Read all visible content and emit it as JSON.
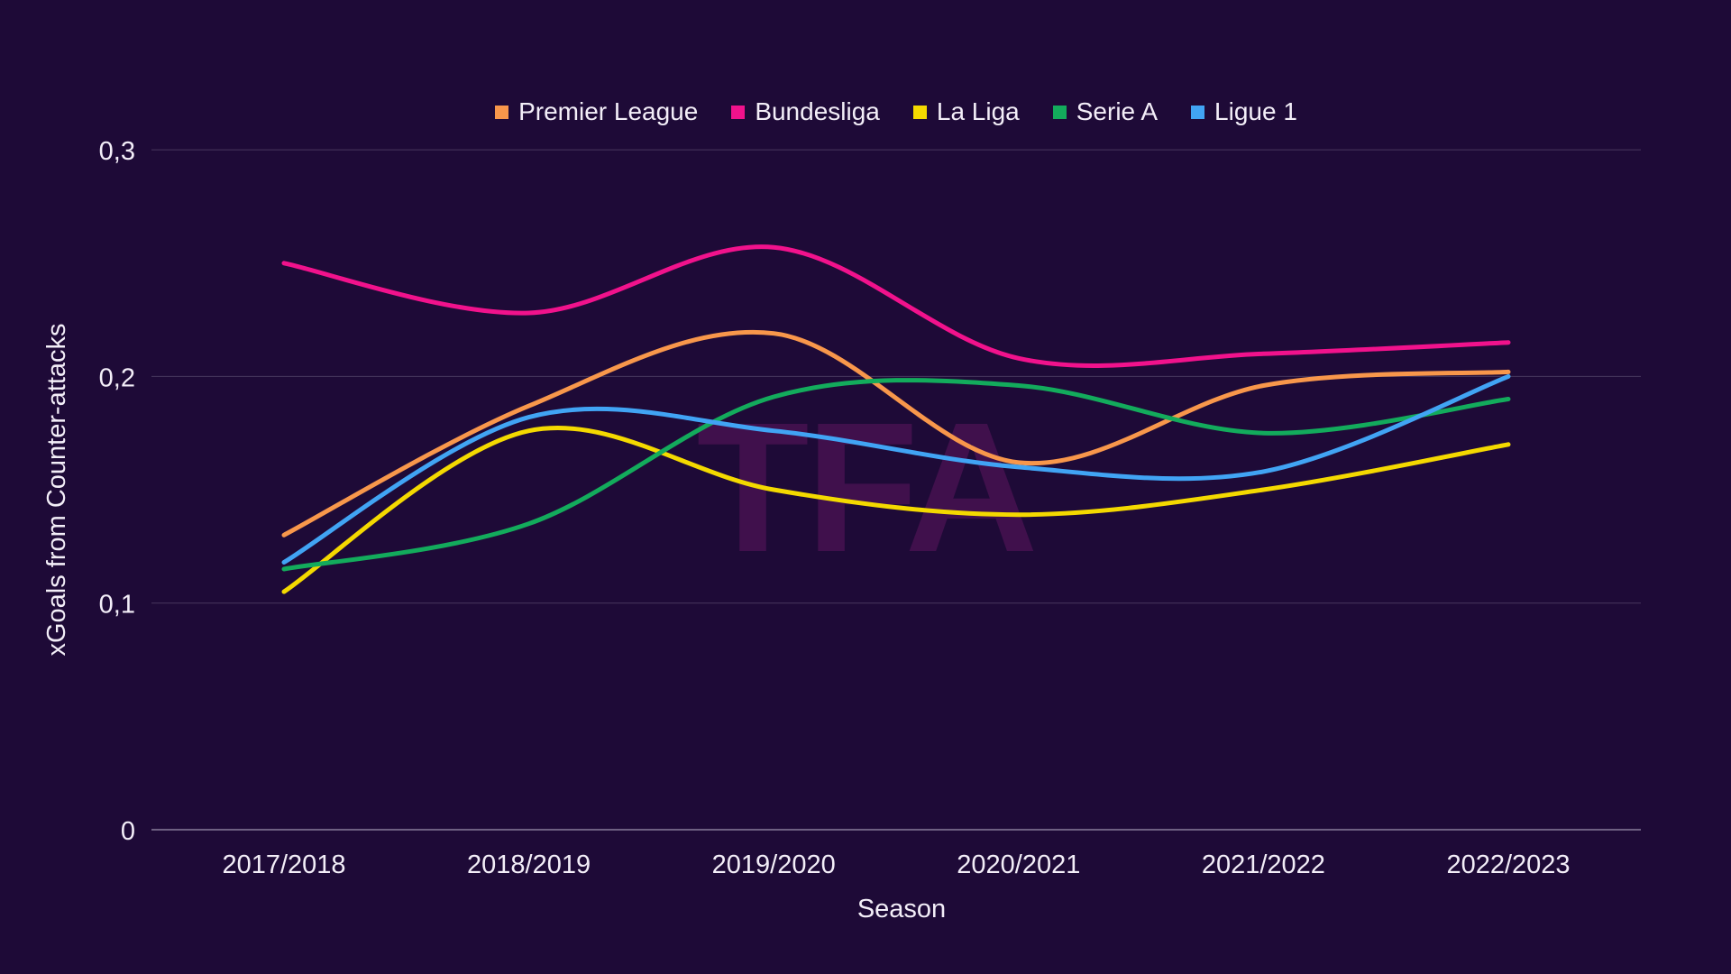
{
  "watermark": "TFA",
  "colors": {
    "background": "#1e0a37",
    "text": "#f3eef8",
    "grid": "#e1dbee",
    "watermark": "#40104c"
  },
  "chart_data": {
    "type": "line",
    "title": "",
    "xlabel": "Season",
    "ylabel": "xGoals from Counter-attacks",
    "categories": [
      "2017/2018",
      "2018/2019",
      "2019/2020",
      "2020/2021",
      "2021/2022",
      "2022/2023"
    ],
    "yticks": {
      "values": [
        0,
        0.1,
        0.2,
        0.3
      ],
      "labels": [
        "0",
        "0,1",
        "0,2",
        "0,3"
      ]
    },
    "ylim": [
      0,
      0.3
    ],
    "grid": "horizontal",
    "legend_position": "top",
    "series": [
      {
        "name": "Premier League",
        "color": "#f8974b",
        "values": [
          0.13,
          0.187,
          0.219,
          0.162,
          0.196,
          0.202
        ]
      },
      {
        "name": "Bundesliga",
        "color": "#f1128c",
        "values": [
          0.25,
          0.228,
          0.257,
          0.208,
          0.21,
          0.215
        ]
      },
      {
        "name": "La Liga",
        "color": "#f4d900",
        "values": [
          0.105,
          0.176,
          0.15,
          0.139,
          0.15,
          0.17
        ]
      },
      {
        "name": "Serie A",
        "color": "#13ab5c",
        "values": [
          0.115,
          0.135,
          0.191,
          0.196,
          0.175,
          0.19
        ]
      },
      {
        "name": "Ligue 1",
        "color": "#41a4f4",
        "values": [
          0.118,
          0.182,
          0.176,
          0.16,
          0.158,
          0.2
        ]
      }
    ]
  }
}
